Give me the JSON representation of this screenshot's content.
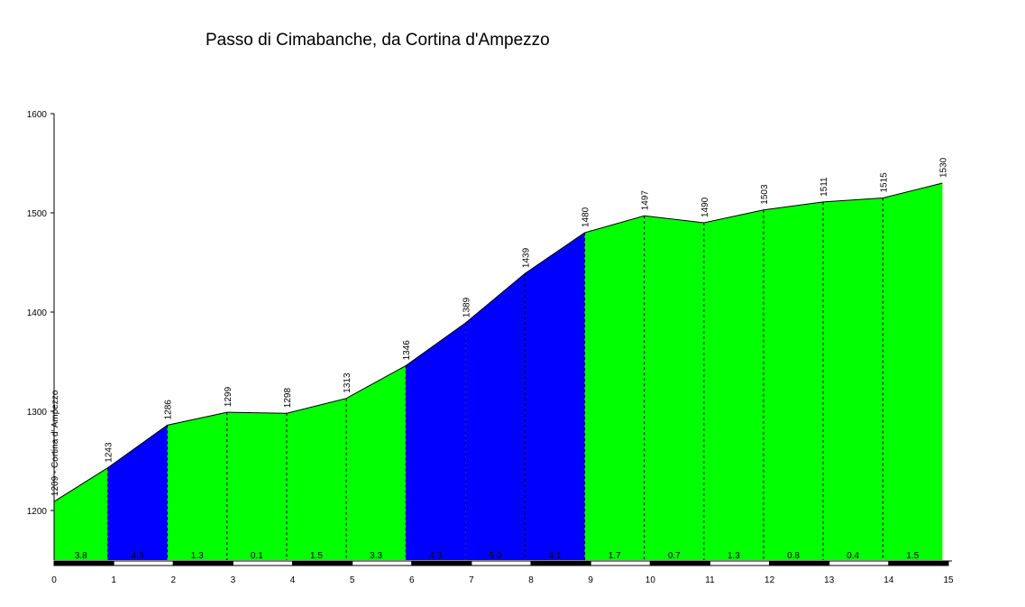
{
  "chart_data": {
    "type": "area",
    "title": "Passo di Cimabanche, da Cortina d'Ampezzo",
    "xlabel": "",
    "ylabel": "",
    "xlim": [
      0,
      15
    ],
    "ylim": [
      1150,
      1600
    ],
    "x_ticks": [
      "0",
      "1",
      "2",
      "3",
      "4",
      "5",
      "6",
      "7",
      "8",
      "9",
      "10",
      "11",
      "12",
      "13",
      "14",
      "15"
    ],
    "y_ticks": [
      "1200",
      "1300",
      "1400",
      "1500",
      "1600"
    ],
    "profile": [
      {
        "x": 0,
        "elev": 1209,
        "label": "1209 - Cortina d' Ampezzo"
      },
      {
        "x": 0.9,
        "elev": 1243,
        "label": "1243"
      },
      {
        "x": 1.9,
        "elev": 1286,
        "label": "1286"
      },
      {
        "x": 2.9,
        "elev": 1299,
        "label": "1299"
      },
      {
        "x": 3.9,
        "elev": 1298,
        "label": "1298"
      },
      {
        "x": 4.9,
        "elev": 1313,
        "label": "1313"
      },
      {
        "x": 5.9,
        "elev": 1346,
        "label": "1346"
      },
      {
        "x": 6.9,
        "elev": 1389,
        "label": "1389"
      },
      {
        "x": 7.9,
        "elev": 1439,
        "label": "1439"
      },
      {
        "x": 8.9,
        "elev": 1480,
        "label": "1480"
      },
      {
        "x": 9.9,
        "elev": 1497,
        "label": "1497"
      },
      {
        "x": 10.9,
        "elev": 1490,
        "label": "1490"
      },
      {
        "x": 11.9,
        "elev": 1503,
        "label": "1503"
      },
      {
        "x": 12.9,
        "elev": 1511,
        "label": "1511"
      },
      {
        "x": 13.9,
        "elev": 1515,
        "label": "1515"
      },
      {
        "x": 14.9,
        "elev": 1530,
        "label": "1530"
      }
    ],
    "segments": [
      {
        "gradient": "3.8",
        "color": "#00ff00"
      },
      {
        "gradient": "4.3",
        "color": "#0000ff"
      },
      {
        "gradient": "1.3",
        "color": "#00ff00"
      },
      {
        "gradient": "0.1",
        "color": "#00ff00"
      },
      {
        "gradient": "1.5",
        "color": "#00ff00"
      },
      {
        "gradient": "3.3",
        "color": "#00ff00"
      },
      {
        "gradient": "4.3",
        "color": "#0000ff"
      },
      {
        "gradient": "5.0",
        "color": "#0000ff"
      },
      {
        "gradient": "4.1",
        "color": "#0000ff"
      },
      {
        "gradient": "1.7",
        "color": "#00ff00"
      },
      {
        "gradient": "0.7",
        "color": "#00ff00"
      },
      {
        "gradient": "1.3",
        "color": "#00ff00"
      },
      {
        "gradient": "0.8",
        "color": "#00ff00"
      },
      {
        "gradient": "0.4",
        "color": "#00ff00"
      },
      {
        "gradient": "1.5",
        "color": "#00ff00"
      }
    ],
    "grid": false,
    "legend": "none"
  }
}
